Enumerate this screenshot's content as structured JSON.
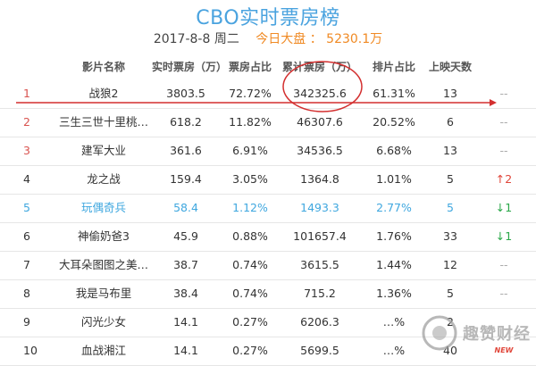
{
  "page": {
    "title": "CBO实时票房榜",
    "date_label": "2017-8-8 周二",
    "total_label": "今日大盘 ： 5230.1万"
  },
  "table": {
    "headers": [
      "影片名称",
      "实时票房（万）",
      "票房占比",
      "累计票房（万）",
      "排片占比",
      "上映天数"
    ],
    "rows": [
      {
        "rank": "1",
        "name": "战狼2",
        "realtime": "3803.5",
        "realtime_share": "72.72%",
        "cumulative": "342325.6",
        "screening_share": "61.31%",
        "days": "13",
        "change": "--"
      },
      {
        "rank": "2",
        "name": "三生三世十里桃…",
        "realtime": "618.2",
        "realtime_share": "11.82%",
        "cumulative": "46307.6",
        "screening_share": "20.52%",
        "days": "6",
        "change": "--"
      },
      {
        "rank": "3",
        "name": "建军大业",
        "realtime": "361.6",
        "realtime_share": "6.91%",
        "cumulative": "34536.5",
        "screening_share": "6.68%",
        "days": "13",
        "change": "--"
      },
      {
        "rank": "4",
        "name": "龙之战",
        "realtime": "159.4",
        "realtime_share": "3.05%",
        "cumulative": "1364.8",
        "screening_share": "1.01%",
        "days": "5",
        "change": "↑2"
      },
      {
        "rank": "5",
        "name": "玩偶奇兵",
        "realtime": "58.4",
        "realtime_share": "1.12%",
        "cumulative": "1493.3",
        "screening_share": "2.77%",
        "days": "5",
        "change": "↓1"
      },
      {
        "rank": "6",
        "name": "神偷奶爸3",
        "realtime": "45.9",
        "realtime_share": "0.88%",
        "cumulative": "101657.4",
        "screening_share": "1.76%",
        "days": "33",
        "change": "↓1"
      },
      {
        "rank": "7",
        "name": "大耳朵图图之美…",
        "realtime": "38.7",
        "realtime_share": "0.74%",
        "cumulative": "3615.5",
        "screening_share": "1.44%",
        "days": "12",
        "change": "--"
      },
      {
        "rank": "8",
        "name": "我是马布里",
        "realtime": "38.4",
        "realtime_share": "0.74%",
        "cumulative": "715.2",
        "screening_share": "1.36%",
        "days": "5",
        "change": "--"
      },
      {
        "rank": "9",
        "name": "闪光少女",
        "realtime": "14.1",
        "realtime_share": "0.27%",
        "cumulative": "6206.3",
        "screening_share": "…%",
        "days": "2",
        "change": ""
      },
      {
        "rank": "10",
        "name": "血战湘江",
        "realtime": "14.1",
        "realtime_share": "0.27%",
        "cumulative": "5699.5",
        "screening_share": "…%",
        "days": "40",
        "change": "NEW"
      }
    ]
  },
  "watermark": {
    "text": "趣赞财经"
  },
  "colors": {
    "title": "#4aa3df",
    "total": "#f08a24",
    "rank_red": "#d9534f",
    "highlight": "#3fa7df",
    "annotation": "#d32f2f",
    "up": "#e0463a",
    "down": "#2ba84a"
  }
}
